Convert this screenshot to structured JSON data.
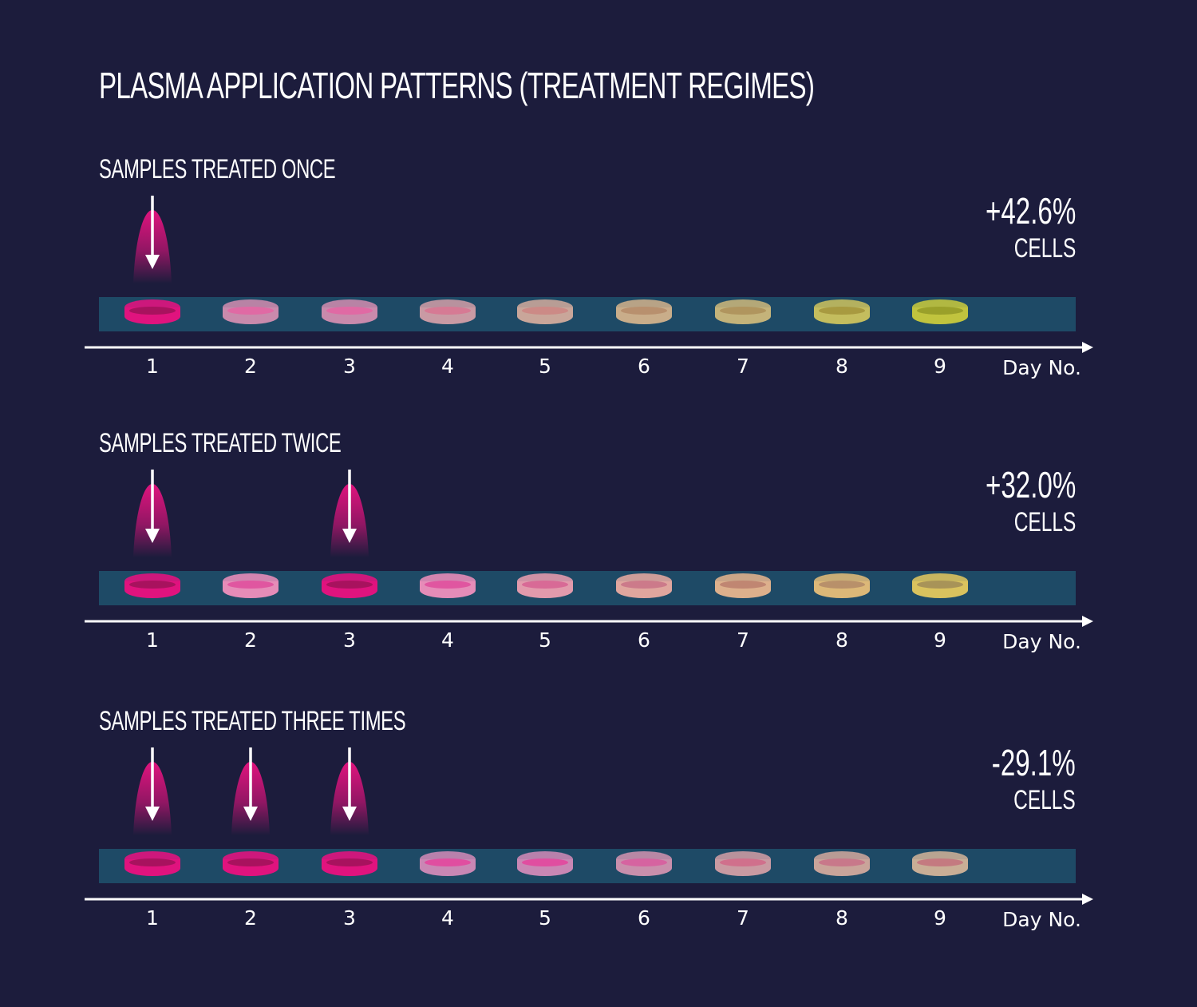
{
  "title": "PLASMA APPLICATION PATTERNS (TREATMENT REGIMES)",
  "axis_label": "Day No.",
  "days": [
    "1",
    "2",
    "3",
    "4",
    "5",
    "6",
    "7",
    "8",
    "9"
  ],
  "colors": {
    "background": "#1c1c3c",
    "band": "#1e4a66",
    "treated": "#e0137e",
    "axis": "#ffffff"
  },
  "sections": [
    {
      "label": "SAMPLES TREATED ONCE",
      "result": "+42.6%",
      "result_unit": "CELLS",
      "treated_days": [
        1
      ],
      "dish_colors": [
        "#e0137e",
        "#c98aac",
        "#c98aac",
        "#c99aa4",
        "#c9a69a",
        "#c9ad8a",
        "#c4b37a",
        "#c4bd5e",
        "#c1c43e"
      ],
      "dish_inner": [
        "#a8125e",
        "#e06aa4",
        "#e06aa4",
        "#d67a94",
        "#cc8a86",
        "#b8906e",
        "#b0955e",
        "#a89a40",
        "#9aa02a"
      ]
    },
    {
      "label": "SAMPLES TREATED TWICE",
      "result": "+32.0%",
      "result_unit": "CELLS",
      "treated_days": [
        1,
        3
      ],
      "dish_colors": [
        "#e0137e",
        "#e58cb8",
        "#e0137e",
        "#e58cb8",
        "#e29aac",
        "#e0a69e",
        "#ddb08c",
        "#dcb878",
        "#d9c25e"
      ],
      "dish_inner": [
        "#a8125e",
        "#e056a0",
        "#a8125e",
        "#e056a0",
        "#d86a96",
        "#cc7a8a",
        "#c08672",
        "#b8906a",
        "#a89358"
      ]
    },
    {
      "label": "SAMPLES TREATED THREE TIMES",
      "result": "-29.1%",
      "result_unit": "CELLS",
      "treated_days": [
        1,
        2,
        3
      ],
      "dish_colors": [
        "#e0137e",
        "#e0137e",
        "#e0137e",
        "#c987b4",
        "#c987b4",
        "#c98fac",
        "#c99aa2",
        "#c9a49a",
        "#c9ae96"
      ],
      "dish_inner": [
        "#a8125e",
        "#a8125e",
        "#a8125e",
        "#e04ea0",
        "#e04ea0",
        "#d663a0",
        "#d0708c",
        "#c8788a",
        "#c47a80"
      ]
    }
  ]
}
